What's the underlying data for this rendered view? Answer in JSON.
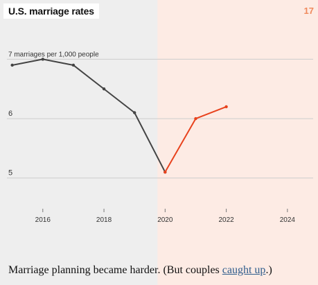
{
  "header": {
    "title": "U.S. marriage rates",
    "page_number": "17"
  },
  "caption": {
    "before": "Marriage planning became harder. (But couples ",
    "link_text": "caught up",
    "after": ".)"
  },
  "colors": {
    "background": "#eeeeee",
    "highlight_region": "#fdebe4",
    "pre_series": "#444444",
    "post_series": "#e8421d",
    "gridline": "#cccccc",
    "page_number": "#f08a5d",
    "link": "#2f5d8c"
  },
  "chart_data": {
    "type": "line",
    "title": "",
    "ylabel": "7 marriages per 1,000 people",
    "xlim": [
      2014.6,
      2025.0
    ],
    "ylim": [
      4.6,
      7.6
    ],
    "x_ticks": [
      "2016",
      "2018",
      "2020",
      "2022",
      "2024"
    ],
    "y_ticks": [
      "7",
      "6",
      "5"
    ],
    "highlight_region_start": 2019.75,
    "grid": true,
    "series": [
      {
        "name": "",
        "color": "#444444",
        "x": [
          2015,
          2016,
          2017,
          2018,
          2019,
          2020
        ],
        "y": [
          6.9,
          7.0,
          6.9,
          6.5,
          6.1,
          5.1
        ]
      },
      {
        "name": "",
        "color": "#e8421d",
        "x": [
          2020,
          2021,
          2022
        ],
        "y": [
          5.1,
          6.0,
          6.2
        ]
      }
    ]
  }
}
